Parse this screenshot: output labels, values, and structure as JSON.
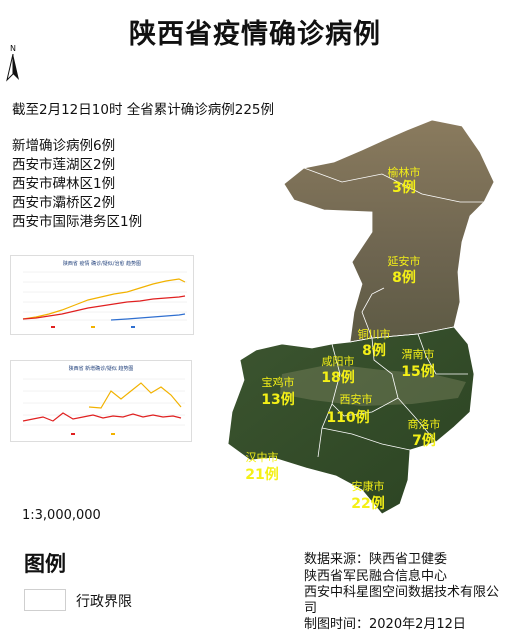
{
  "title": "陕西省疫情确诊病例",
  "north_label": "N",
  "summary": "截至2月12日10时 全省累计确诊病例225例",
  "new_cases": [
    "新增确诊病例6例",
    "西安市莲湖区2例",
    "西安市碑林区1例",
    "西安市灞桥区2例",
    "西安市国际港务区1例"
  ],
  "chart1": {
    "title": "陕西省 疫情 确诊/疑似/治愈 趋势图"
  },
  "chart2": {
    "title": "陕西省 新增确诊/疑似 趋势图"
  },
  "scale": "1:3,000,000",
  "legend": {
    "title": "图例",
    "item": "行政界限"
  },
  "source": "数据来源：陕西省卫健委",
  "credits": [
    "陕西省军民融合信息中心",
    "西安中科星图空间数据技术有限公司",
    "制图时间：2020年2月12日"
  ],
  "cities": [
    {
      "name": "榆林市",
      "count": "3例"
    },
    {
      "name": "延安市",
      "count": "8例"
    },
    {
      "name": "铜川市",
      "count": "8例"
    },
    {
      "name": "咸阳市",
      "count": "18例"
    },
    {
      "name": "渭南市",
      "count": "15例"
    },
    {
      "name": "宝鸡市",
      "count": "13例"
    },
    {
      "name": "西安市",
      "count": "110例"
    },
    {
      "name": "商洛市",
      "count": "7例"
    },
    {
      "name": "汉中市",
      "count": "21例"
    },
    {
      "name": "安康市",
      "count": "22例"
    }
  ],
  "colors": {
    "label": "#f4f017",
    "north_terrain": "#9a8a6a",
    "south_forest": "#35502a"
  }
}
